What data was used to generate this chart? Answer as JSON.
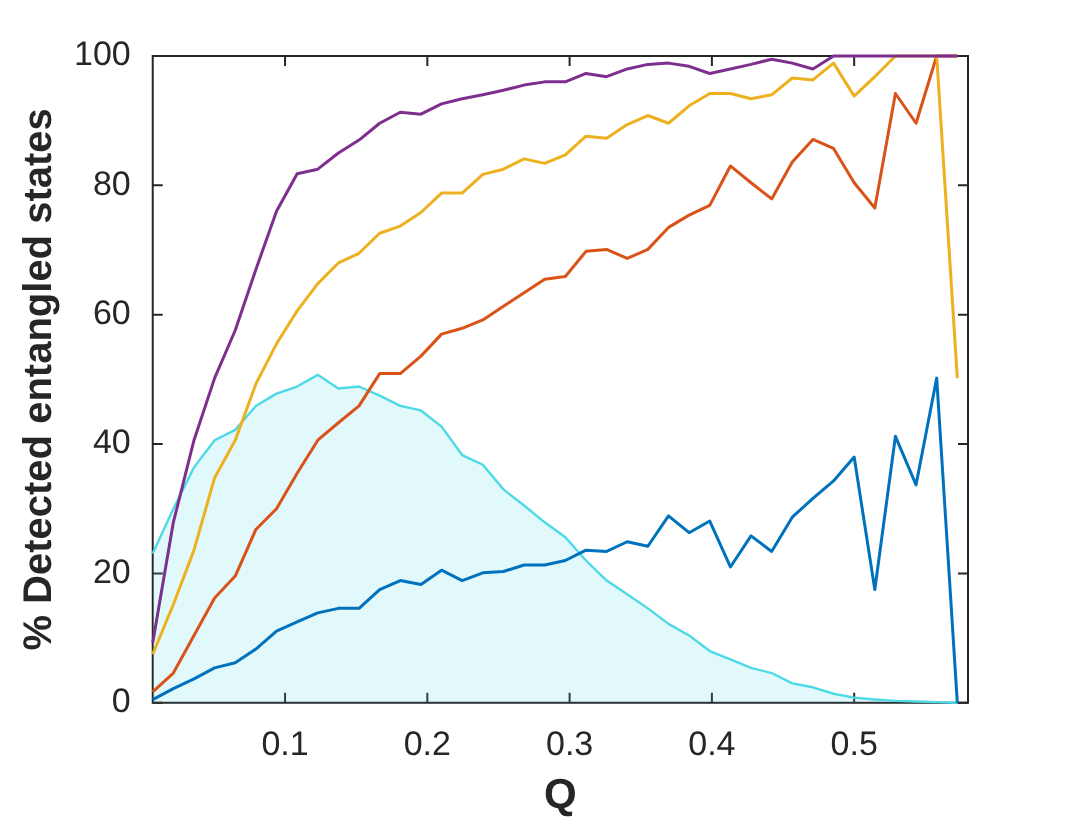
{
  "chart_data": {
    "type": "line",
    "xlabel": "Q",
    "ylabel": "% Detected entangled states",
    "x": [
      0.007,
      0.0215,
      0.036,
      0.0505,
      0.065,
      0.0795,
      0.094,
      0.1085,
      0.123,
      0.1375,
      0.152,
      0.1665,
      0.181,
      0.1955,
      0.21,
      0.2245,
      0.239,
      0.2535,
      0.268,
      0.2825,
      0.297,
      0.3115,
      0.326,
      0.3405,
      0.355,
      0.3695,
      0.384,
      0.3985,
      0.413,
      0.4275,
      0.442,
      0.4565,
      0.471,
      0.4855,
      0.5,
      0.5145,
      0.529,
      0.5435,
      0.558,
      0.5725
    ],
    "series": [
      {
        "type": "area",
        "color": "#4dd9e6",
        "values": [
          23.1,
          30,
          36.4,
          40.6,
          42.2,
          45.9,
          47.8,
          48.9,
          50.7,
          48.6,
          48.9,
          47.5,
          45.9,
          45.2,
          42.7,
          38.3,
          36.8,
          33,
          30.5,
          27.9,
          25.6,
          22,
          18.9,
          16.8,
          14.6,
          12.2,
          10.4,
          8,
          6.7,
          5.4,
          4.6,
          3,
          2.4,
          1.4,
          0.8,
          0.5,
          0.3,
          0.2,
          0.1,
          0
        ]
      },
      {
        "color": "#7e2f8e",
        "values": [
          9.3,
          27.9,
          40.6,
          50.2,
          57.6,
          67,
          76,
          81.8,
          82.5,
          85,
          87,
          89.6,
          91.3,
          91,
          92.6,
          93.4,
          94,
          94.7,
          95.5,
          96,
          96,
          97.3,
          96.8,
          98,
          98.7,
          98.9,
          98.4,
          97.3,
          98,
          98.7,
          99.5,
          98.9,
          98,
          100,
          100,
          100,
          100,
          100,
          100,
          100
        ]
      },
      {
        "color": "#edb120",
        "values": [
          7.5,
          15.2,
          23.6,
          34.8,
          40.6,
          49.3,
          55.5,
          60.6,
          64.8,
          68,
          69.5,
          72.6,
          73.7,
          75.8,
          78.8,
          78.8,
          81.7,
          82.5,
          84.1,
          83.4,
          84.7,
          87.6,
          87.3,
          89.4,
          90.8,
          89.6,
          92.3,
          94.2,
          94.2,
          93.4,
          94,
          96.6,
          96.3,
          98.9,
          93.8,
          96.8,
          100,
          100,
          100,
          50.2
        ]
      },
      {
        "color": "#d95319",
        "values": [
          1.7,
          4.6,
          10.4,
          16.2,
          19.6,
          26.8,
          30,
          35.5,
          40.6,
          43.3,
          45.9,
          50.9,
          50.9,
          53.6,
          57,
          57.9,
          59.2,
          61.3,
          63.4,
          65.5,
          65.9,
          69.8,
          70.1,
          68.7,
          70.1,
          73.5,
          75.4,
          76.9,
          83,
          80.4,
          77.9,
          83.6,
          87.1,
          85.7,
          80.4,
          76.5,
          94.2,
          89.6,
          100,
          100
        ]
      },
      {
        "color": "#0072bd",
        "values": [
          0.5,
          2.2,
          3.7,
          5.4,
          6.2,
          8.3,
          11.1,
          12.5,
          13.9,
          14.6,
          14.6,
          17.5,
          18.9,
          18.3,
          20.5,
          18.9,
          20.1,
          20.3,
          21.3,
          21.3,
          22,
          23.6,
          23.4,
          24.9,
          24.2,
          28.9,
          26.3,
          28.1,
          21,
          25.8,
          23.4,
          28.7,
          31.6,
          34.3,
          38,
          17.5,
          41.2,
          33.7,
          50.2,
          0
        ]
      }
    ],
    "xlim": [
      0.007,
      0.58
    ],
    "xticks": [
      0.1,
      0.2,
      0.3,
      0.4,
      0.5
    ],
    "ylim": [
      0,
      100
    ],
    "yticks": [
      0,
      20,
      40,
      60,
      80,
      100
    ]
  }
}
